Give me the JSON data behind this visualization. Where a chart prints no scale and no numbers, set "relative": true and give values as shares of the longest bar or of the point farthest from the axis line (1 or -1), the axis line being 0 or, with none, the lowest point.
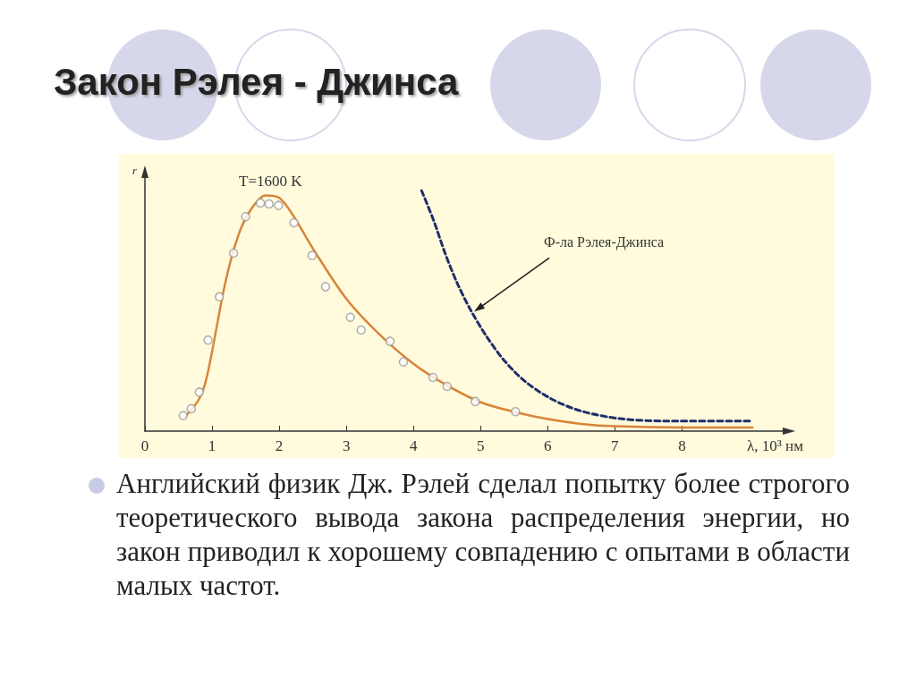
{
  "chart_data": {
    "type": "line",
    "title": "Закон Рэлея - Джинса",
    "xlabel": "λ, 10³ нм",
    "ylabel": "r",
    "relative": true,
    "xlim": [
      0,
      9.5
    ],
    "xticks": [
      0,
      1,
      2,
      3,
      4,
      5,
      6,
      7,
      8
    ],
    "grid": false,
    "annotations": [
      "T=1600 K",
      "Ф-ла Рэлея-Джинса",
      "Английский физик Дж. Рэлей сделал попытку более строгого теоретического вывода закона распределения энергии, но закон приводил к хорошему совпадению с опытами в области малых частот."
    ],
    "series": [
      {
        "color": "#d9843a",
        "marker": "none",
        "line_style": "solid",
        "x": [
          0.6,
          0.8,
          0.9,
          1.0,
          1.2,
          1.4,
          1.6,
          1.8,
          2.0,
          2.2,
          2.5,
          3.0,
          3.5,
          4.0,
          4.5,
          5.0,
          5.5,
          6.0,
          6.5,
          7.0,
          8.0,
          9.05
        ],
        "values": [
          0.06,
          0.13,
          0.2,
          0.33,
          0.62,
          0.82,
          0.93,
          0.98,
          0.97,
          0.9,
          0.76,
          0.55,
          0.4,
          0.28,
          0.19,
          0.12,
          0.08,
          0.05,
          0.03,
          0.02,
          0.015,
          0.015
        ]
      },
      {
        "type": "scatter",
        "color": "#ffffff",
        "marker": "circle",
        "x": [
          0.57,
          0.69,
          0.81,
          0.94,
          1.11,
          1.32,
          1.5,
          1.72,
          1.85,
          1.99,
          2.22,
          2.49,
          2.69,
          3.06,
          3.22,
          3.65,
          3.85,
          4.29,
          4.5,
          4.92,
          5.52
        ],
        "values": [
          0.064,
          0.093,
          0.162,
          0.378,
          0.558,
          0.74,
          0.891,
          0.948,
          0.944,
          0.938,
          0.866,
          0.73,
          0.6,
          0.473,
          0.42,
          0.373,
          0.287,
          0.223,
          0.186,
          0.123,
          0.081
        ]
      },
      {
        "color": "#1f2f6b",
        "marker": "none",
        "line_style": "dashed",
        "x": [
          4.12,
          4.3,
          4.47,
          4.65,
          4.85,
          5.09,
          5.35,
          5.66,
          6.06,
          6.5,
          7.07,
          7.73,
          9.03
        ],
        "values": [
          1.0,
          0.876,
          0.74,
          0.616,
          0.504,
          0.393,
          0.294,
          0.207,
          0.133,
          0.083,
          0.052,
          0.042,
          0.042
        ]
      }
    ]
  }
}
